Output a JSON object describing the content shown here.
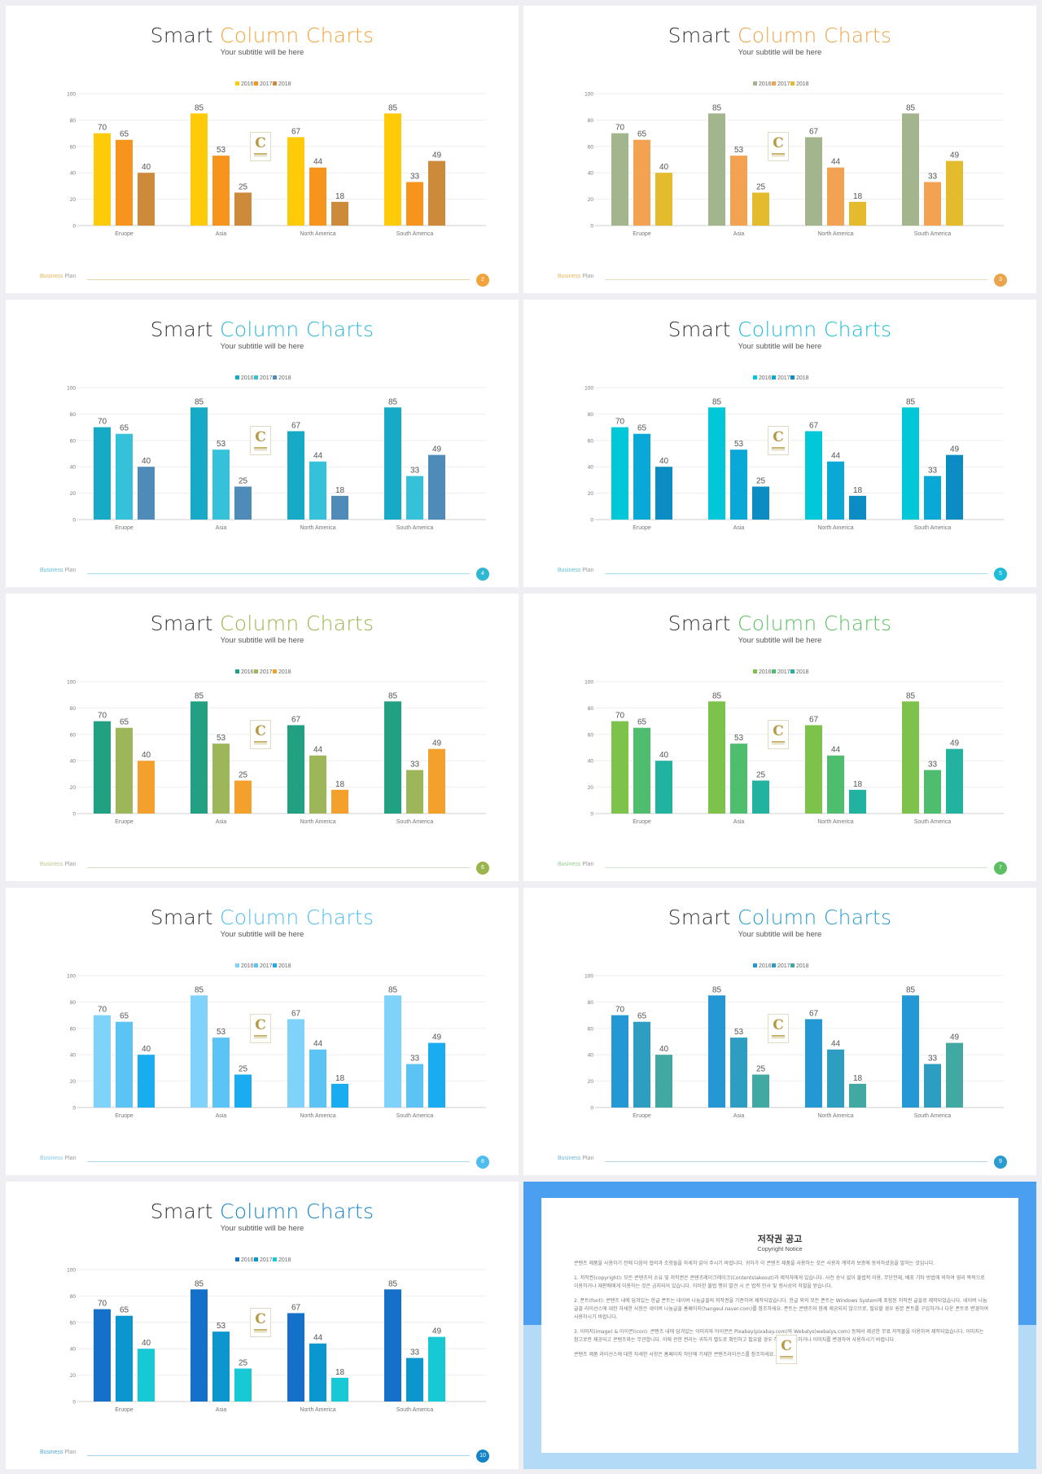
{
  "slides": [
    {
      "title_a": "Smart",
      "title_b": "Column Charts",
      "subtitle": "Your subtitle will be here",
      "footer_a": "Business",
      "footer_b": "Plan",
      "page": "2",
      "accent": "#f2a33a",
      "footer_line": "#e2d3a6",
      "footer_a_color": "#e8b45a",
      "colors": [
        "#ffcb08",
        "#f7941d",
        "#cd8a3b"
      ]
    },
    {
      "title_a": "Smart",
      "title_b": "Column Charts",
      "subtitle": "Your subtitle will be here",
      "footer_a": "Business",
      "footer_b": "Plan",
      "page": "3",
      "accent": "#eba44a",
      "footer_line": "#e5dcc0",
      "footer_a_color": "#e8b45a",
      "colors": [
        "#a3b58c",
        "#f2a250",
        "#e3bb2c"
      ]
    },
    {
      "title_a": "Smart",
      "title_b": "Column Charts",
      "subtitle": "Your subtitle will be here",
      "footer_a": "Business",
      "footer_b": "Plan",
      "page": "4",
      "accent": "#2eb8d4",
      "footer_line": "#a9dcea",
      "footer_a_color": "#5bc0d8",
      "colors": [
        "#16aac7",
        "#35c1d9",
        "#4f8bb8"
      ]
    },
    {
      "title_a": "Smart",
      "title_b": "Column Charts",
      "subtitle": "Your subtitle will be here",
      "footer_a": "Business",
      "footer_b": "Plan",
      "page": "5",
      "accent": "#1dbcd8",
      "footer_line": "#a9dcea",
      "footer_a_color": "#5bc0d8",
      "colors": [
        "#00c8d8",
        "#0aa8d6",
        "#0b8cc2"
      ]
    },
    {
      "title_a": "Smart",
      "title_b": "Column Charts",
      "subtitle": "Your subtitle will be here",
      "footer_a": "Business",
      "footer_b": "Plan",
      "page": "6",
      "accent": "#9ab54e",
      "footer_line": "#dcdcc4",
      "footer_a_color": "#b9c98b",
      "colors": [
        "#21a082",
        "#9db65a",
        "#f4a02c"
      ]
    },
    {
      "title_a": "Smart",
      "title_b": "Column Charts",
      "subtitle": "Your subtitle will be here",
      "footer_a": "Business",
      "footer_b": "Plan",
      "page": "7",
      "accent": "#5cbf63",
      "footer_line": "#cfe5cf",
      "footer_a_color": "#8fcf8f",
      "colors": [
        "#7dc24a",
        "#4fbd6e",
        "#22b2a0"
      ]
    },
    {
      "title_a": "Smart",
      "title_b": "Column Charts",
      "subtitle": "Your subtitle will be here",
      "footer_a": "Business",
      "footer_b": "Plan",
      "page": "8",
      "accent": "#4dbdef",
      "footer_line": "#b3dcf2",
      "footer_a_color": "#7ecbef",
      "colors": [
        "#7fd3fb",
        "#5cc3f5",
        "#1aacf0"
      ]
    },
    {
      "title_a": "Smart",
      "title_b": "Column Charts",
      "subtitle": "Your subtitle will be here",
      "footer_a": "Business",
      "footer_b": "Plan",
      "page": "9",
      "accent": "#2a9bcf",
      "footer_line": "#b3d5e6",
      "footer_a_color": "#6fb6d8",
      "colors": [
        "#2398d4",
        "#2d9dc2",
        "#41a8a2"
      ]
    },
    {
      "title_a": "Smart",
      "title_b": "Column Charts",
      "subtitle": "Your subtitle will be here",
      "footer_a": "Business",
      "footer_b": "Plan",
      "page": "10",
      "accent": "#1684c8",
      "footer_line": "#a7d0ea",
      "footer_a_color": "#4da8dc",
      "colors": [
        "#1470c8",
        "#0b96d0",
        "#16c9d5"
      ]
    }
  ],
  "logo": {
    "letter": "C"
  },
  "chart_data": {
    "type": "bar",
    "categories": [
      "Eruope",
      "Asia",
      "North America",
      "South America"
    ],
    "series": [
      {
        "name": "2016",
        "values": [
          70,
          85,
          67,
          85
        ]
      },
      {
        "name": "2017",
        "values": [
          65,
          53,
          44,
          33
        ]
      },
      {
        "name": "2018",
        "values": [
          40,
          25,
          18,
          49
        ]
      }
    ],
    "yticks": [
      "100",
      "80",
      "60",
      "40",
      "20",
      "0"
    ],
    "ylim": [
      0,
      100
    ]
  },
  "copyright": {
    "title": "저작권 공고",
    "subtitle": "Copyright Notice",
    "paragraphs": [
      "콘텐츠 제품을 사용하기 전에 다음의 협의과 조항들을 자세히 읽어 주시기 바랍니다. 귀하가 이 콘텐츠 제품을 사용하는 것은 사용자 계약과 보증에 동의하셨음을 말하는 것입니다.",
      "1. 저작권(copyright): 모든 콘텐츠의 소유 및 저작권은 콘텐츠레이크레이크(Contentslakeout)과 제작자에게 있습니다. 사전 승낙 없이 불법적 이용, 무단전재, 배포 기타 방법에 의하여 영리 목적으로 이용하거나 재판매에게 이용하는 것은 금지되어 있습니다. 이러한 불법 행위 발견 시 은 법적 민사 및 형사상의 처벌을 받습니다.",
      "2. 폰트(font): 콘텐츠 내에 담겨있는 한글 폰트는 네이버 나눔글꼴의 저작권을 기준하여 제작되었습니다. 한글 외의 모든 폰트는 Windows System에 포함된 저작권 글꼴로 제작되었습니다. 네이버 나눔글꼴 라이선스에 대한 자세한 사항은 네이버 나눔글꼴 홈페이지(hangeul.naver.com)를 참조하세요. 폰트는 콘텐츠와 함께 제공되지 않으므로, 필요할 경우 원본 폰트를 구입하거나 다운 폰트로 변경하여 사용하시기 바랍니다.",
      "3. 이미지(image) & 아이콘(icon): 콘텐츠 내에 담겨있는 이미지와 아이콘은 Pixabay(pixabay.com)와 Webalys(webalys.com) 등에서 제공한 무료 저작물을 이용하여 제작되었습니다. 이미지는 참고로만 제공되고 콘텐츠와는 무관합니다. 이에 관한 권리는 귀하가 별도로 확인하고 필요할 경우 허가를 취득하거나 이미지를 변경하여 사용하시기 바랍니다.",
      "콘텐츠 제품 라이선스에 대한 자세한 사항은 홈페이지 하단에 기재한 콘텐츠라이선스를 참조하세요."
    ]
  }
}
